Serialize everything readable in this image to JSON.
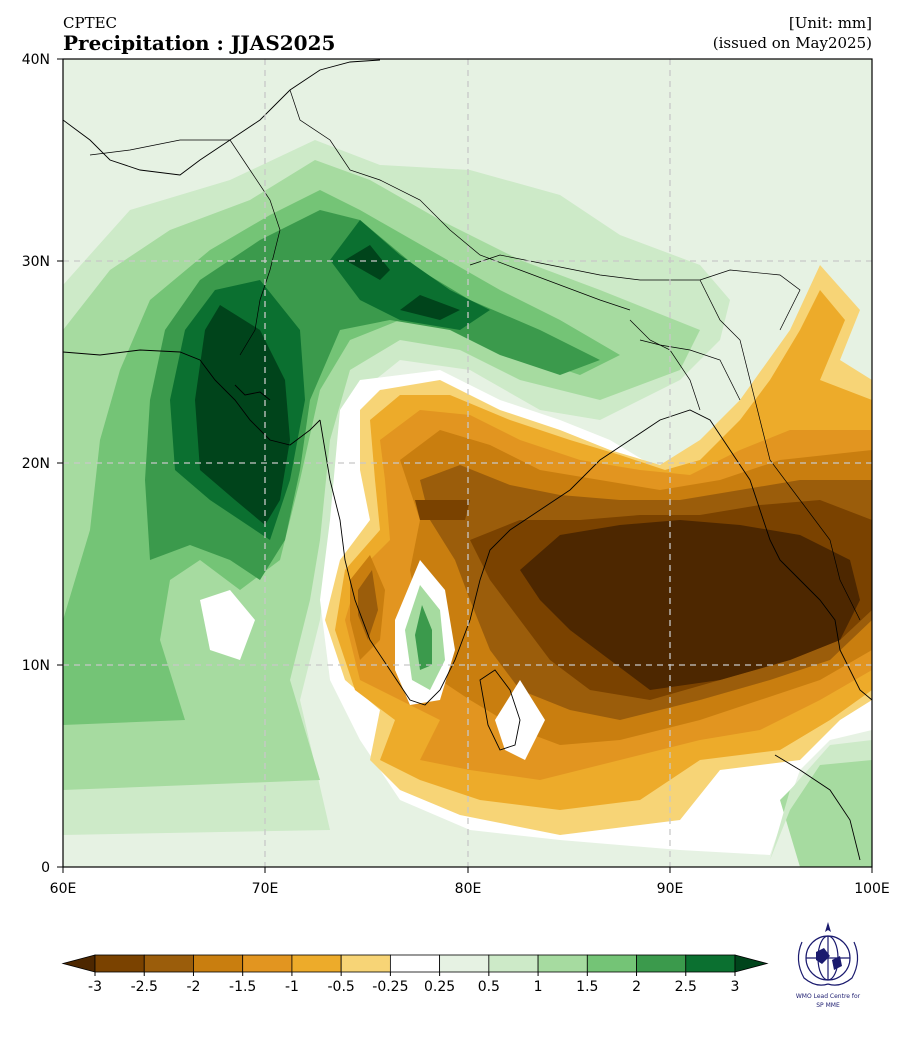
{
  "header": {
    "source": "CPTEC",
    "title": "Precipitation : JJAS2025",
    "unit": "[Unit: mm]",
    "issued": "(issued on May2025)"
  },
  "map": {
    "lon_range": [
      60,
      100
    ],
    "lat_range": [
      0,
      40
    ],
    "x_ticks": [
      "60E",
      "70E",
      "80E",
      "90E",
      "100E"
    ],
    "y_ticks": [
      "0",
      "10N",
      "20N",
      "30N",
      "40N"
    ],
    "gridlines": "dashed",
    "coastlines": true,
    "borders": true
  },
  "colorbar": {
    "labels": [
      "-3",
      "-2.5",
      "-2",
      "-1.5",
      "-1",
      "-0.5",
      "-0.25",
      "0.25",
      "0.5",
      "1",
      "1.5",
      "2",
      "2.5",
      "3"
    ],
    "colors": [
      "#4d2700",
      "#7a4200",
      "#9b5d0b",
      "#c97e0f",
      "#e29520",
      "#edab2a",
      "#f7d476",
      "#ffffff",
      "#e6f2e3",
      "#cdeac8",
      "#a6dba0",
      "#74c476",
      "#3b9a4c",
      "#0b7030",
      "#00441b"
    ],
    "extend": "both"
  },
  "logo": {
    "line1": "WMO Lead Centre for",
    "line2": "SP MME"
  }
}
